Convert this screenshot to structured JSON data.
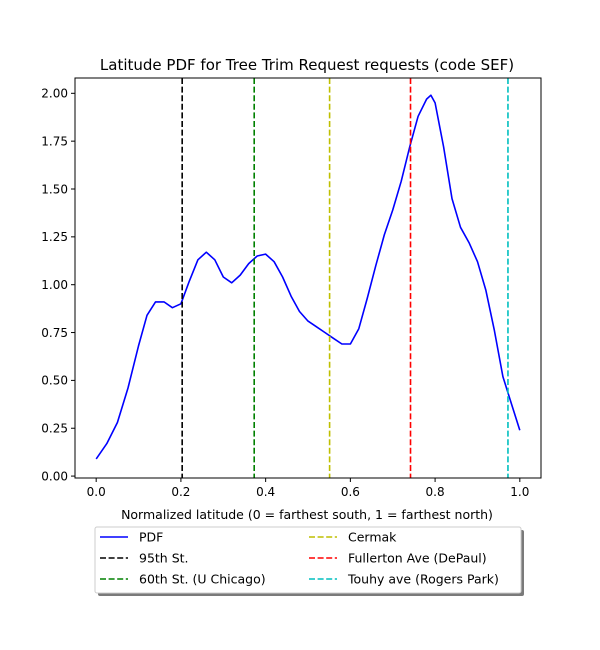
{
  "chart_data": {
    "type": "line",
    "title": "Latitude PDF for Tree Trim Request  requests (code SEF)",
    "xlabel": "Normalized latitude (0 = farthest south, 1 = farthest north)",
    "ylabel": "",
    "xlim": [
      -0.05,
      1.05
    ],
    "ylim": [
      -0.01,
      2.08
    ],
    "x_ticks": [
      0.0,
      0.2,
      0.4,
      0.6,
      0.8,
      1.0
    ],
    "x_tick_labels": [
      "0.0",
      "0.2",
      "0.4",
      "0.6",
      "0.8",
      "1.0"
    ],
    "y_ticks": [
      0.0,
      0.25,
      0.5,
      0.75,
      1.0,
      1.25,
      1.5,
      1.75,
      2.0
    ],
    "y_tick_labels": [
      "0.00",
      "0.25",
      "0.50",
      "0.75",
      "1.00",
      "1.25",
      "1.50",
      "1.75",
      "2.00"
    ],
    "grid": false,
    "legend_position": "below plot, two columns",
    "series": [
      {
        "name": "PDF",
        "color": "#0000ff",
        "style": "solid",
        "x": [
          0.0,
          0.025,
          0.05,
          0.075,
          0.1,
          0.12,
          0.14,
          0.16,
          0.18,
          0.2,
          0.22,
          0.24,
          0.26,
          0.28,
          0.3,
          0.32,
          0.34,
          0.36,
          0.38,
          0.4,
          0.42,
          0.44,
          0.46,
          0.48,
          0.5,
          0.52,
          0.54,
          0.56,
          0.58,
          0.6,
          0.62,
          0.64,
          0.66,
          0.68,
          0.7,
          0.72,
          0.74,
          0.76,
          0.78,
          0.79,
          0.8,
          0.82,
          0.84,
          0.86,
          0.88,
          0.9,
          0.92,
          0.94,
          0.96,
          0.98,
          1.0
        ],
        "y": [
          0.09,
          0.17,
          0.28,
          0.46,
          0.68,
          0.84,
          0.91,
          0.91,
          0.88,
          0.9,
          1.02,
          1.13,
          1.17,
          1.13,
          1.04,
          1.01,
          1.05,
          1.11,
          1.15,
          1.16,
          1.12,
          1.04,
          0.94,
          0.86,
          0.81,
          0.78,
          0.75,
          0.72,
          0.69,
          0.69,
          0.77,
          0.93,
          1.1,
          1.26,
          1.39,
          1.54,
          1.72,
          1.88,
          1.97,
          1.99,
          1.95,
          1.72,
          1.45,
          1.3,
          1.22,
          1.12,
          0.97,
          0.76,
          0.52,
          0.38,
          0.24
        ]
      }
    ],
    "reference_lines": [
      {
        "name": "95th St.",
        "x": 0.203,
        "color": "#000000"
      },
      {
        "name": "60th St. (U Chicago)",
        "x": 0.373,
        "color": "#008000"
      },
      {
        "name": "Cermak",
        "x": 0.551,
        "color": "#bfbf00"
      },
      {
        "name": "Fullerton Ave (DePaul)",
        "x": 0.742,
        "color": "#ff0000"
      },
      {
        "name": "Touhy ave (Rogers Park)",
        "x": 0.972,
        "color": "#00bfbf"
      }
    ],
    "legend": [
      {
        "label": "PDF",
        "color": "#0000ff",
        "style": "solid"
      },
      {
        "label": "95th St.",
        "color": "#000000",
        "style": "dashed"
      },
      {
        "label": "60th St. (U Chicago)",
        "color": "#008000",
        "style": "dashed"
      },
      {
        "label": "Cermak",
        "color": "#bfbf00",
        "style": "dashed"
      },
      {
        "label": "Fullerton Ave (DePaul)",
        "color": "#ff0000",
        "style": "dashed"
      },
      {
        "label": "Touhy ave (Rogers Park)",
        "color": "#00bfbf",
        "style": "dashed"
      }
    ]
  }
}
